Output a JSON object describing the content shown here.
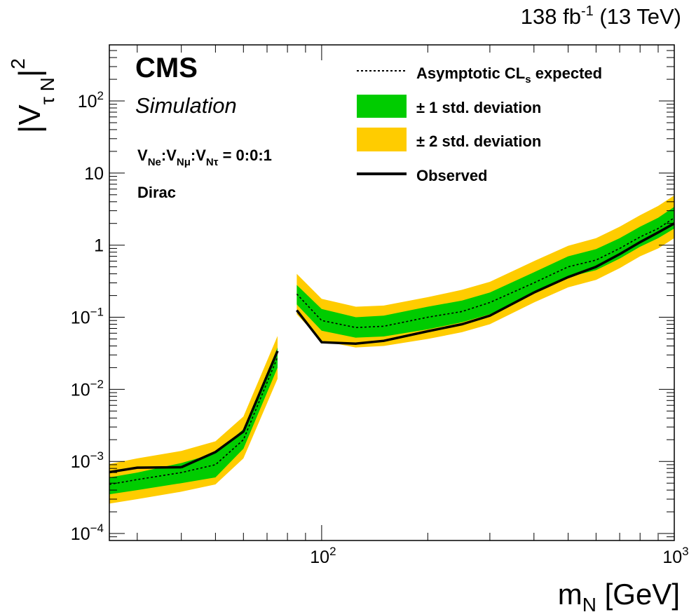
{
  "header": {
    "lumi": "138",
    "lumi_unit_base": "fb",
    "lumi_unit_exp": "-1",
    "energy": "(13 TeV)"
  },
  "labels": {
    "experiment": "CMS",
    "status": "Simulation",
    "scenario_pre": "V",
    "scenario_text": "0:0:1",
    "scenario_Ne": "Ne",
    "scenario_Nmu": "Nμ",
    "scenario_Ntau": "Nτ",
    "mode": "Dirac"
  },
  "legend": {
    "expected": "Asymptotic CL",
    "expected_sub": "s",
    "expected_tail": " expected",
    "one_sigma": "± 1 std. deviation",
    "two_sigma": "± 2 std. deviation",
    "observed": "Observed"
  },
  "axes": {
    "x_main": "m",
    "x_sub": "N",
    "x_unit": "[GeV]",
    "y_main": "|V",
    "y_sub": "τ N",
    "y_close": "|",
    "y_sup": "2"
  },
  "colors": {
    "one_sigma": "#00cc00",
    "two_sigma": "#ffcc00",
    "observed": "#000000",
    "expected": "#000000"
  },
  "chart_data": {
    "type": "line",
    "x_scale": "log",
    "y_scale": "log",
    "xlim": [
      25,
      1000
    ],
    "ylim": [
      8e-05,
      600
    ],
    "x_ticks": [
      {
        "value": 100,
        "base": "10",
        "exp": "2"
      },
      {
        "value": 1000,
        "base": "10",
        "exp": "3"
      }
    ],
    "y_ticks": [
      {
        "value": 0.0001,
        "base": "10",
        "exp": "−4"
      },
      {
        "value": 0.001,
        "base": "10",
        "exp": "−3"
      },
      {
        "value": 0.01,
        "base": "10",
        "exp": "−2"
      },
      {
        "value": 0.1,
        "base": "10",
        "exp": "−1"
      },
      {
        "value": 1,
        "base": "1",
        "exp": ""
      },
      {
        "value": 10,
        "base": "10",
        "exp": ""
      },
      {
        "value": 100,
        "base": "10",
        "exp": "2"
      }
    ],
    "segments": [
      {
        "x": [
          25,
          30,
          40,
          50,
          60,
          75
        ],
        "expected": [
          0.00048,
          0.00056,
          0.0007,
          0.0009,
          0.002,
          0.028
        ],
        "one_sigma_low": [
          0.00035,
          0.0004,
          0.0005,
          0.0006,
          0.0015,
          0.02
        ],
        "one_sigma_high": [
          0.0006,
          0.0007,
          0.00095,
          0.0013,
          0.0028,
          0.038
        ],
        "two_sigma_low": [
          0.00026,
          0.0003,
          0.00038,
          0.00048,
          0.0011,
          0.014
        ],
        "two_sigma_high": [
          0.00092,
          0.0011,
          0.0014,
          0.0019,
          0.0042,
          0.055
        ],
        "observed_x": [
          25,
          30,
          40,
          50,
          60,
          75
        ],
        "observed": [
          0.00071,
          0.00082,
          0.00083,
          0.00135,
          0.0026,
          0.034
        ],
        "observed_broken_at": 40
      },
      {
        "x": [
          85,
          100,
          125,
          150,
          200,
          250,
          300,
          400,
          500,
          600,
          700,
          800,
          900,
          1000
        ],
        "expected": [
          0.21,
          0.09,
          0.072,
          0.075,
          0.1,
          0.12,
          0.16,
          0.3,
          0.5,
          0.62,
          0.9,
          1.3,
          1.7,
          2.4
        ],
        "one_sigma_low": [
          0.15,
          0.065,
          0.052,
          0.054,
          0.068,
          0.085,
          0.11,
          0.22,
          0.36,
          0.45,
          0.65,
          0.95,
          1.25,
          1.7
        ],
        "one_sigma_high": [
          0.28,
          0.13,
          0.1,
          0.105,
          0.14,
          0.17,
          0.22,
          0.42,
          0.7,
          0.88,
          1.25,
          1.8,
          2.4,
          3.4
        ],
        "two_sigma_low": [
          0.11,
          0.047,
          0.038,
          0.04,
          0.05,
          0.062,
          0.08,
          0.16,
          0.26,
          0.33,
          0.48,
          0.7,
          0.9,
          1.25
        ],
        "two_sigma_high": [
          0.4,
          0.18,
          0.14,
          0.145,
          0.19,
          0.24,
          0.31,
          0.6,
          0.98,
          1.25,
          1.8,
          2.6,
          3.5,
          4.9
        ],
        "observed_x": [
          85,
          100,
          125,
          150,
          200,
          250,
          300,
          400,
          500,
          600,
          700,
          800,
          900,
          1000
        ],
        "observed": [
          0.125,
          0.045,
          0.043,
          0.047,
          0.064,
          0.08,
          0.105,
          0.22,
          0.36,
          0.5,
          0.75,
          1.1,
          1.5,
          2.0
        ]
      }
    ]
  }
}
